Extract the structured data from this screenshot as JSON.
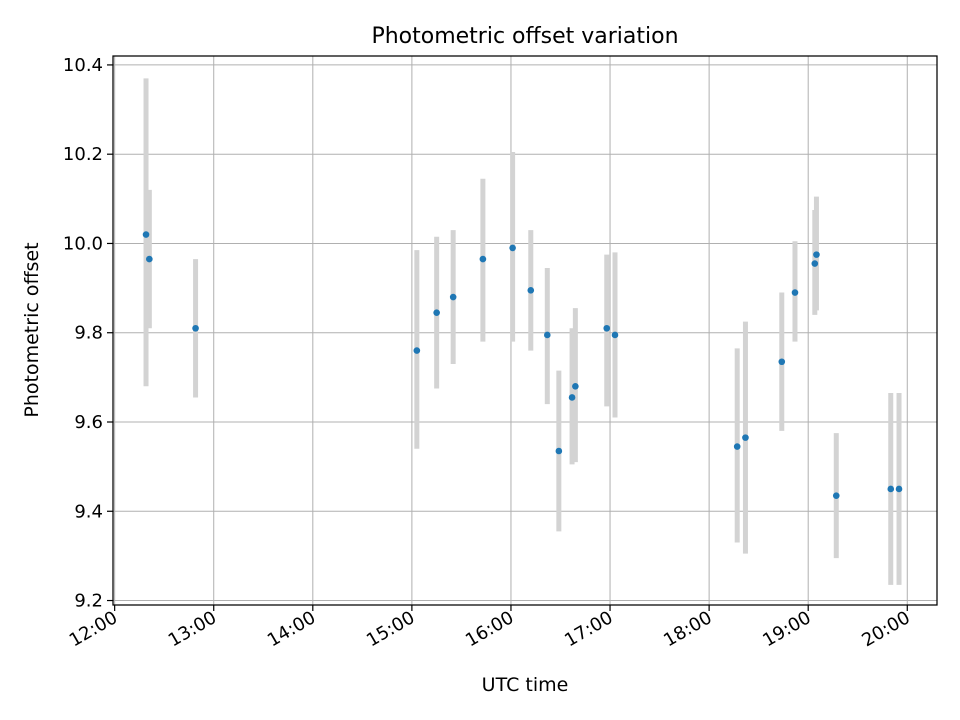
{
  "chart_data": {
    "type": "scatter",
    "title": "Photometric offset variation",
    "xlabel": "UTC time",
    "ylabel": "Photometric offset",
    "x_axis_kind": "time",
    "xlim": [
      "11:59",
      "20:18"
    ],
    "ylim": [
      9.19,
      10.42
    ],
    "x_ticks": [
      "12:00",
      "13:00",
      "14:00",
      "15:00",
      "16:00",
      "17:00",
      "18:00",
      "19:00",
      "20:00"
    ],
    "y_ticks": [
      9.2,
      9.4,
      9.6,
      9.8,
      10.0,
      10.2,
      10.4
    ],
    "y_tick_labels": [
      "9.2",
      "9.4",
      "9.6",
      "9.8",
      "10.0",
      "10.2",
      "10.4"
    ],
    "grid": true,
    "legend": "none",
    "colors": {
      "points": "#1f77b4",
      "error_bars": "#d3d3d3",
      "grid": "#b0b0b0"
    },
    "points": [
      {
        "x": "12:19",
        "y": 10.02,
        "ylow": 9.68,
        "yhigh": 10.37
      },
      {
        "x": "12:21",
        "y": 9.965,
        "ylow": 9.81,
        "yhigh": 10.12
      },
      {
        "x": "12:49",
        "y": 9.81,
        "ylow": 9.655,
        "yhigh": 9.965
      },
      {
        "x": "15:03",
        "y": 9.76,
        "ylow": 9.54,
        "yhigh": 9.985
      },
      {
        "x": "15:15",
        "y": 9.845,
        "ylow": 9.675,
        "yhigh": 10.015
      },
      {
        "x": "15:25",
        "y": 9.88,
        "ylow": 9.73,
        "yhigh": 10.03
      },
      {
        "x": "15:43",
        "y": 9.965,
        "ylow": 9.78,
        "yhigh": 10.145
      },
      {
        "x": "16:01",
        "y": 9.99,
        "ylow": 9.78,
        "yhigh": 10.205
      },
      {
        "x": "16:12",
        "y": 9.895,
        "ylow": 9.76,
        "yhigh": 10.03
      },
      {
        "x": "16:22",
        "y": 9.795,
        "ylow": 9.64,
        "yhigh": 9.945
      },
      {
        "x": "16:29",
        "y": 9.535,
        "ylow": 9.355,
        "yhigh": 9.715
      },
      {
        "x": "16:37",
        "y": 9.655,
        "ylow": 9.505,
        "yhigh": 9.81
      },
      {
        "x": "16:39",
        "y": 9.68,
        "ylow": 9.51,
        "yhigh": 9.855
      },
      {
        "x": "16:58",
        "y": 9.81,
        "ylow": 9.635,
        "yhigh": 9.975
      },
      {
        "x": "17:03",
        "y": 9.795,
        "ylow": 9.61,
        "yhigh": 9.98
      },
      {
        "x": "18:17",
        "y": 9.545,
        "ylow": 9.33,
        "yhigh": 9.765
      },
      {
        "x": "18:22",
        "y": 9.565,
        "ylow": 9.305,
        "yhigh": 9.825
      },
      {
        "x": "18:44",
        "y": 9.735,
        "ylow": 9.58,
        "yhigh": 9.89
      },
      {
        "x": "18:52",
        "y": 9.89,
        "ylow": 9.78,
        "yhigh": 10.005
      },
      {
        "x": "19:04",
        "y": 9.955,
        "ylow": 9.84,
        "yhigh": 10.075
      },
      {
        "x": "19:05",
        "y": 9.975,
        "ylow": 9.85,
        "yhigh": 10.105
      },
      {
        "x": "19:17",
        "y": 9.435,
        "ylow": 9.295,
        "yhigh": 9.575
      },
      {
        "x": "19:50",
        "y": 9.45,
        "ylow": 9.235,
        "yhigh": 9.665
      },
      {
        "x": "19:55",
        "y": 9.45,
        "ylow": 9.235,
        "yhigh": 9.665
      }
    ]
  }
}
